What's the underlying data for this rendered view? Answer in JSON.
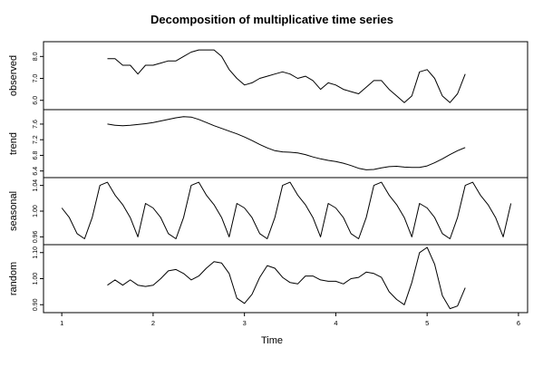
{
  "chart_data": {
    "type": "line",
    "title": "Decomposition of multiplicative time series",
    "xlabel": "Time",
    "xlim": [
      0.8,
      6.1
    ],
    "x_ticks": [
      1,
      2,
      3,
      4,
      5,
      6
    ],
    "x_tick_labels": [
      "1",
      "2",
      "3",
      "4",
      "5",
      "6"
    ],
    "line_color": "#000000",
    "panels": [
      {
        "name": "observed",
        "ylabel": "observed",
        "ylim": [
          5.7,
          8.55
        ],
        "y_ticks": [
          6.0,
          7.0,
          8.0
        ],
        "y_tick_labels": [
          "6.0",
          "7.0",
          "8.0"
        ],
        "x": [
          1.5,
          1.583,
          1.667,
          1.75,
          1.833,
          1.917,
          2.0,
          2.083,
          2.167,
          2.25,
          2.333,
          2.417,
          2.5,
          2.583,
          2.667,
          2.75,
          2.833,
          2.917,
          3.0,
          3.083,
          3.167,
          3.25,
          3.333,
          3.417,
          3.5,
          3.583,
          3.667,
          3.75,
          3.833,
          3.917,
          4.0,
          4.083,
          4.167,
          4.25,
          4.333,
          4.417,
          4.5,
          4.583,
          4.667,
          4.75,
          4.833,
          4.917,
          5.0,
          5.083,
          5.167,
          5.25,
          5.333,
          5.417
        ],
        "values": [
          7.9,
          7.9,
          7.6,
          7.6,
          7.2,
          7.6,
          7.6,
          7.7,
          7.8,
          7.8,
          8.0,
          8.2,
          8.3,
          8.3,
          8.3,
          8.0,
          7.4,
          7.0,
          6.7,
          6.8,
          7.0,
          7.1,
          7.2,
          7.3,
          7.2,
          7.0,
          7.1,
          6.9,
          6.5,
          6.8,
          6.7,
          6.5,
          6.4,
          6.3,
          6.6,
          6.9,
          6.9,
          6.5,
          6.2,
          5.9,
          6.2,
          7.3,
          7.4,
          7.0,
          6.2,
          5.9,
          6.3,
          7.2
        ]
      },
      {
        "name": "trend",
        "ylabel": "trend",
        "ylim": [
          6.3,
          7.9
        ],
        "y_ticks": [
          6.4,
          6.8,
          7.2,
          7.6
        ],
        "y_tick_labels": [
          "6.4",
          "6.8",
          "7.2",
          "7.6"
        ],
        "x": [
          1.5,
          1.583,
          1.667,
          1.75,
          1.833,
          1.917,
          2.0,
          2.083,
          2.167,
          2.25,
          2.333,
          2.417,
          2.5,
          2.583,
          2.667,
          2.75,
          2.833,
          2.917,
          3.0,
          3.083,
          3.167,
          3.25,
          3.333,
          3.417,
          3.5,
          3.583,
          3.667,
          3.75,
          3.833,
          3.917,
          4.0,
          4.083,
          4.167,
          4.25,
          4.333,
          4.417,
          4.5,
          4.583,
          4.667,
          4.75,
          4.833,
          4.917,
          5.0,
          5.083,
          5.167,
          5.25,
          5.333,
          5.417
        ],
        "values": [
          7.6,
          7.57,
          7.56,
          7.57,
          7.59,
          7.61,
          7.64,
          7.68,
          7.72,
          7.76,
          7.79,
          7.78,
          7.72,
          7.64,
          7.56,
          7.49,
          7.42,
          7.35,
          7.27,
          7.18,
          7.08,
          6.99,
          6.92,
          6.89,
          6.88,
          6.86,
          6.82,
          6.76,
          6.71,
          6.67,
          6.64,
          6.6,
          6.54,
          6.47,
          6.43,
          6.44,
          6.48,
          6.51,
          6.52,
          6.5,
          6.49,
          6.49,
          6.53,
          6.61,
          6.71,
          6.82,
          6.92,
          7.0
        ]
      },
      {
        "name": "seasonal",
        "ylabel": "seasonal",
        "ylim": [
          0.952,
          1.048
        ],
        "y_ticks": [
          0.96,
          1.0,
          1.04
        ],
        "y_tick_labels": [
          "0.96",
          "1.00",
          "1.04"
        ],
        "x": [
          1.0,
          1.083,
          1.167,
          1.25,
          1.333,
          1.417,
          1.5,
          1.583,
          1.667,
          1.75,
          1.833,
          1.917,
          2.0,
          2.083,
          2.167,
          2.25,
          2.333,
          2.417,
          2.5,
          2.583,
          2.667,
          2.75,
          2.833,
          2.917,
          3.0,
          3.083,
          3.167,
          3.25,
          3.333,
          3.417,
          3.5,
          3.583,
          3.667,
          3.75,
          3.833,
          3.917,
          4.0,
          4.083,
          4.167,
          4.25,
          4.333,
          4.417,
          4.5,
          4.583,
          4.667,
          4.75,
          4.833,
          4.917,
          5.0,
          5.083,
          5.167,
          5.25,
          5.333,
          5.417,
          5.5,
          5.583,
          5.667,
          5.75,
          5.833,
          5.917
        ],
        "values": [
          1.005,
          0.99,
          0.965,
          0.957,
          0.99,
          1.04,
          1.045,
          1.025,
          1.01,
          0.99,
          0.96,
          1.012,
          1.005,
          0.99,
          0.965,
          0.957,
          0.99,
          1.04,
          1.045,
          1.025,
          1.01,
          0.99,
          0.96,
          1.012,
          1.005,
          0.99,
          0.965,
          0.957,
          0.99,
          1.04,
          1.045,
          1.025,
          1.01,
          0.99,
          0.96,
          1.012,
          1.005,
          0.99,
          0.965,
          0.957,
          0.99,
          1.04,
          1.045,
          1.025,
          1.01,
          0.99,
          0.96,
          1.012,
          1.005,
          0.99,
          0.965,
          0.957,
          0.99,
          1.04,
          1.045,
          1.025,
          1.01,
          0.99,
          0.96,
          1.012
        ]
      },
      {
        "name": "random",
        "ylabel": "random",
        "ylim": [
          0.88,
          1.12
        ],
        "y_ticks": [
          0.9,
          1.0,
          1.1
        ],
        "y_tick_labels": [
          "0.90",
          "1.00",
          "1.10"
        ],
        "x": [
          1.5,
          1.583,
          1.667,
          1.75,
          1.833,
          1.917,
          2.0,
          2.083,
          2.167,
          2.25,
          2.333,
          2.417,
          2.5,
          2.583,
          2.667,
          2.75,
          2.833,
          2.917,
          3.0,
          3.083,
          3.167,
          3.25,
          3.333,
          3.417,
          3.5,
          3.583,
          3.667,
          3.75,
          3.833,
          3.917,
          4.0,
          4.083,
          4.167,
          4.25,
          4.333,
          4.417,
          4.5,
          4.583,
          4.667,
          4.75,
          4.833,
          4.917,
          5.0,
          5.083,
          5.167,
          5.25,
          5.333,
          5.417
        ],
        "values": [
          0.975,
          0.995,
          0.975,
          0.995,
          0.975,
          0.97,
          0.975,
          1.0,
          1.03,
          1.035,
          1.02,
          0.995,
          1.01,
          1.04,
          1.065,
          1.06,
          1.02,
          0.925,
          0.905,
          0.94,
          1.005,
          1.05,
          1.04,
          1.005,
          0.985,
          0.98,
          1.01,
          1.01,
          0.995,
          0.99,
          0.99,
          0.98,
          1.0,
          1.005,
          1.025,
          1.02,
          1.005,
          0.95,
          0.92,
          0.9,
          0.985,
          1.1,
          1.12,
          1.055,
          0.935,
          0.885,
          0.895,
          0.965
        ]
      }
    ]
  }
}
